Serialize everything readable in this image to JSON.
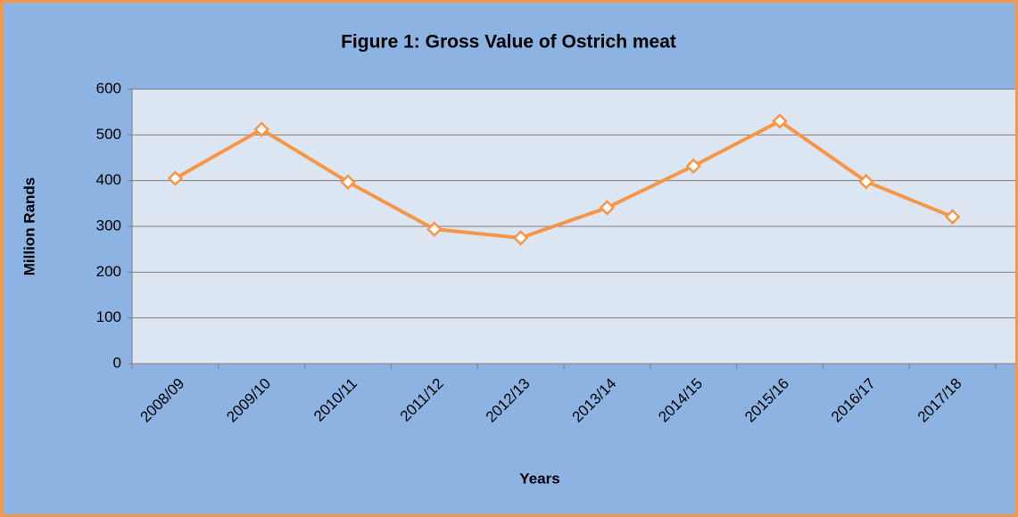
{
  "chart_data": {
    "type": "line",
    "title": "Figure 1: Gross Value of Ostrich meat",
    "x_label": "Years",
    "y_label": "Million Rands",
    "categories": [
      "2008/09",
      "2009/10",
      "2010/11",
      "2011/12",
      "2012/13",
      "2013/14",
      "2014/15",
      "2015/16",
      "2016/17",
      "2017/18"
    ],
    "series": [
      {
        "name": "Gross Value",
        "color": "#f79646",
        "values": [
          405,
          512,
          397,
          294,
          275,
          341,
          432,
          530,
          398,
          321
        ]
      }
    ],
    "ylim": [
      0,
      600
    ],
    "yticks": [
      0,
      100,
      200,
      300,
      400,
      500,
      600
    ],
    "grid": true
  }
}
